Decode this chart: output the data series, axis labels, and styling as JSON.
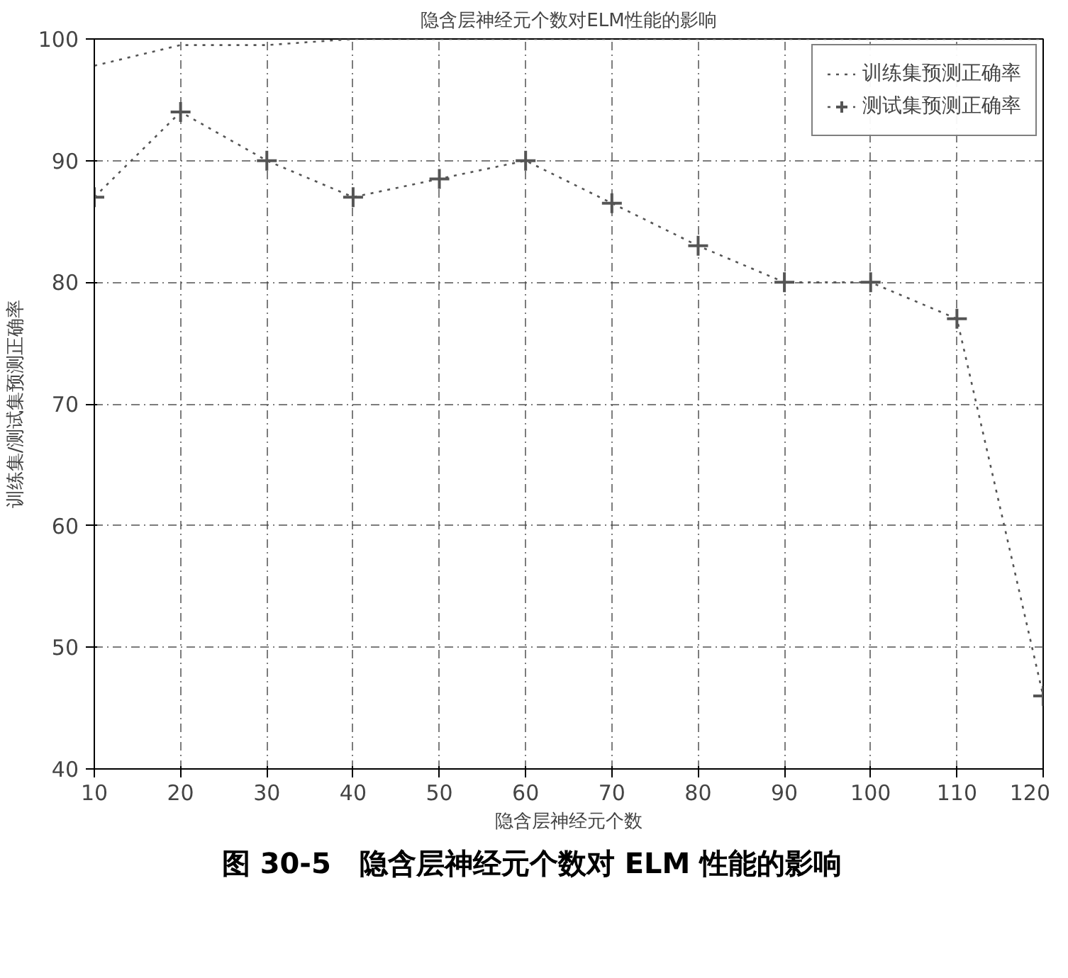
{
  "chart_data": {
    "type": "line",
    "title": "隐含层神经元个数对ELM性能的影响",
    "xlabel": "隐含层神经元个数",
    "ylabel": "训练集/测试集预测正确率",
    "x": [
      10,
      20,
      30,
      40,
      50,
      60,
      70,
      80,
      90,
      100,
      110,
      120
    ],
    "series": [
      {
        "name": "训练集预测正确率",
        "color": "#555555",
        "marker": "none",
        "line_style": "dotted",
        "values": [
          97.8,
          99.5,
          99.5,
          100,
          100,
          100,
          100,
          100,
          100,
          100,
          100,
          100
        ]
      },
      {
        "name": "测试集预测正确率",
        "color": "#555555",
        "marker": "cross",
        "line_style": "dotted",
        "values": [
          87,
          94,
          90,
          87,
          88.5,
          90,
          86.5,
          83,
          80,
          80,
          77,
          46
        ]
      }
    ],
    "xlim": [
      10,
      120
    ],
    "ylim": [
      40,
      100
    ],
    "xticks": [
      10,
      20,
      30,
      40,
      50,
      60,
      70,
      80,
      90,
      100,
      110,
      120
    ],
    "yticks": [
      40,
      50,
      60,
      70,
      80,
      90,
      100
    ],
    "grid": true,
    "legend": "top right",
    "annotations": [
      "图 30-5　隐含层神经元个数对 ELM 性能的影响"
    ]
  }
}
